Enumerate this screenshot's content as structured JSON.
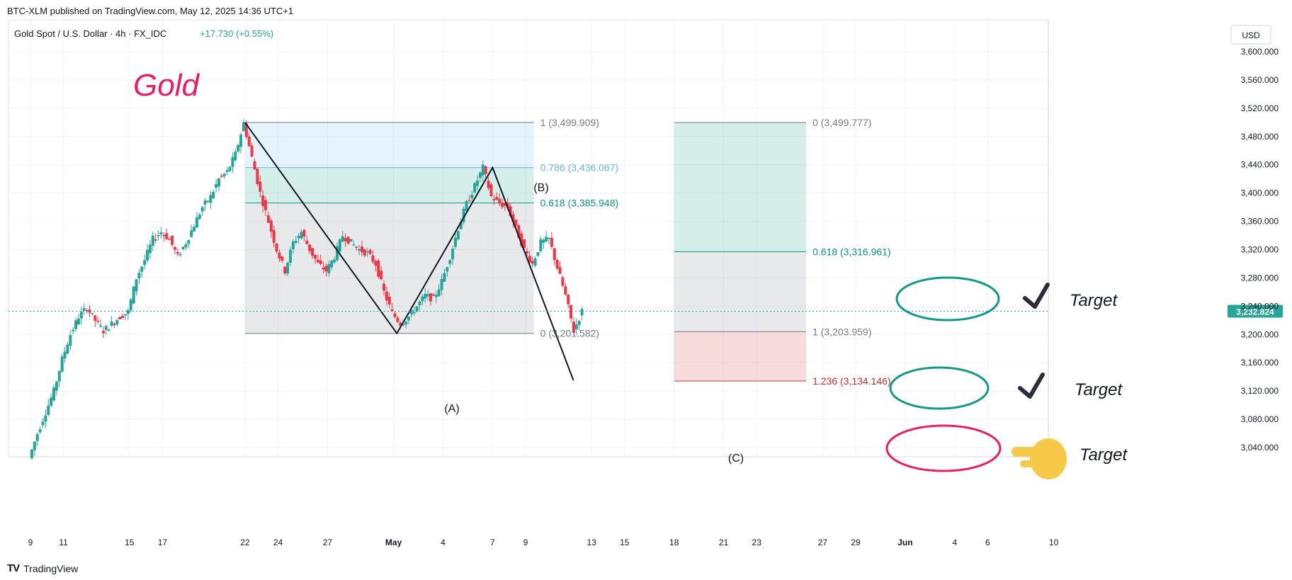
{
  "header": {
    "published": "BTC-XLM published on TradingView.com, May 12, 2025 14:36 UTC+1",
    "symbol": "Gold Spot / U.S. Dollar · 4h · FX_IDC",
    "change": "+17.730 (+0.55%)",
    "currency": "USD"
  },
  "annotations": {
    "title": "Gold",
    "target_label": "Target",
    "wave_a": "(A)",
    "wave_b": "(B)",
    "wave_c": "(C)"
  },
  "footer": {
    "brand": "TradingView",
    "brand_mark": "TV"
  },
  "colors": {
    "up": "#26a69a",
    "down": "#f23645",
    "annotation": "#e91e63",
    "fib_green": "#089981",
    "fib_blue": "#64b5f6",
    "fib_gray": "#787b86",
    "fib_red": "#d32f2f",
    "target_circle_green": "#129b82",
    "pointing_hand": "#f7c948"
  },
  "chart_data": {
    "type": "candlestick",
    "timeframe": "4h",
    "last_price": "3,232.824",
    "y_axis": {
      "ylim": [
        3020,
        3620
      ],
      "ticks": [
        "3,040.000",
        "3,080.000",
        "3,120.000",
        "3,160.000",
        "3,200.000",
        "3,240.000",
        "3,280.000",
        "3,320.000",
        "3,360.000",
        "3,400.000",
        "3,440.000",
        "3,480.000",
        "3,520.000",
        "3,560.000",
        "3,600.000"
      ]
    },
    "x_axis": {
      "ticks": [
        {
          "label": "9",
          "day": 0
        },
        {
          "label": "11",
          "day": 2
        },
        {
          "label": "15",
          "day": 6
        },
        {
          "label": "17",
          "day": 8
        },
        {
          "label": "22",
          "day": 13
        },
        {
          "label": "24",
          "day": 15
        },
        {
          "label": "27",
          "day": 18
        },
        {
          "label": "May",
          "day": 22,
          "bold": true
        },
        {
          "label": "4",
          "day": 25
        },
        {
          "label": "7",
          "day": 28
        },
        {
          "label": "9",
          "day": 30
        },
        {
          "label": "13",
          "day": 34
        },
        {
          "label": "15",
          "day": 36
        },
        {
          "label": "18",
          "day": 39
        },
        {
          "label": "21",
          "day": 42
        },
        {
          "label": "23",
          "day": 44
        },
        {
          "label": "27",
          "day": 48
        },
        {
          "label": "29",
          "day": 50
        },
        {
          "label": "Jun",
          "day": 53,
          "bold": true
        },
        {
          "label": "4",
          "day": 56
        },
        {
          "label": "6",
          "day": 58
        },
        {
          "label": "10",
          "day": 62
        }
      ]
    },
    "price_points": [
      [
        0,
        3025
      ],
      [
        0.5,
        3060
      ],
      [
        1,
        3090
      ],
      [
        1.5,
        3120
      ],
      [
        2,
        3165
      ],
      [
        2.5,
        3200
      ],
      [
        3,
        3225
      ],
      [
        3.5,
        3238
      ],
      [
        4,
        3220
      ],
      [
        4.5,
        3205
      ],
      [
        5,
        3215
      ],
      [
        5.5,
        3225
      ],
      [
        6,
        3232
      ],
      [
        6.5,
        3280
      ],
      [
        7,
        3305
      ],
      [
        7.5,
        3335
      ],
      [
        8,
        3345
      ],
      [
        8.5,
        3335
      ],
      [
        9,
        3310
      ],
      [
        9.5,
        3330
      ],
      [
        10,
        3355
      ],
      [
        10.5,
        3380
      ],
      [
        11,
        3395
      ],
      [
        11.5,
        3420
      ],
      [
        12,
        3430
      ],
      [
        12.5,
        3455
      ],
      [
        13,
        3499
      ],
      [
        13.5,
        3450
      ],
      [
        14,
        3400
      ],
      [
        14.5,
        3360
      ],
      [
        15,
        3320
      ],
      [
        15.5,
        3290
      ],
      [
        16,
        3330
      ],
      [
        16.5,
        3345
      ],
      [
        17,
        3320
      ],
      [
        17.5,
        3300
      ],
      [
        18,
        3290
      ],
      [
        18.5,
        3310
      ],
      [
        19,
        3340
      ],
      [
        19.5,
        3330
      ],
      [
        20,
        3320
      ],
      [
        20.5,
        3315
      ],
      [
        21,
        3300
      ],
      [
        21.5,
        3260
      ],
      [
        22,
        3230
      ],
      [
        22.5,
        3215
      ],
      [
        23,
        3225
      ],
      [
        23.5,
        3240
      ],
      [
        24,
        3255
      ],
      [
        24.5,
        3250
      ],
      [
        25,
        3275
      ],
      [
        25.5,
        3310
      ],
      [
        26,
        3350
      ],
      [
        26.5,
        3385
      ],
      [
        27,
        3410
      ],
      [
        27.5,
        3436
      ],
      [
        28,
        3395
      ],
      [
        28.5,
        3385
      ],
      [
        29,
        3380
      ],
      [
        29.5,
        3350
      ],
      [
        30,
        3320
      ],
      [
        30.5,
        3300
      ],
      [
        31,
        3330
      ],
      [
        31.5,
        3335
      ],
      [
        32,
        3295
      ],
      [
        32.5,
        3255
      ],
      [
        33,
        3205
      ],
      [
        33.5,
        3232.8
      ]
    ],
    "wave_path": [
      [
        13,
        3499.9
      ],
      [
        22.2,
        3201.6
      ],
      [
        28,
        3436.1
      ],
      [
        32.9,
        3135
      ]
    ],
    "fib_retracement": {
      "x_range": [
        13,
        30.5
      ],
      "levels": [
        {
          "ratio": "1",
          "price": 3499.909,
          "label": "1 (3,499.909)",
          "fill": "#787b86"
        },
        {
          "ratio": "0.786",
          "price": 3436.067,
          "label": "0.786 (3,436.067)",
          "fill": "#64b5f6"
        },
        {
          "ratio": "0.618",
          "price": 3385.948,
          "label": "0.618 (3,385.948)",
          "fill": "#089981"
        },
        {
          "ratio": "0",
          "price": 3201.582,
          "label": "0 (3,201.582)",
          "fill": "#787b86"
        }
      ]
    },
    "fib_extension": {
      "x_range": [
        39,
        47
      ],
      "levels": [
        {
          "ratio": "0",
          "price": 3499.777,
          "label": "0 (3,499.777)",
          "fill": "#787b86"
        },
        {
          "ratio": "0.618",
          "price": 3316.961,
          "label": "0.618 (3,316.961)",
          "fill": "#089981"
        },
        {
          "ratio": "1",
          "price": 3203.959,
          "label": "1 (3,203.959)",
          "fill": "#787b86"
        },
        {
          "ratio": "1.236",
          "price": 3134.146,
          "label": "1.236 (3,134.146)",
          "fill": "#d32f2f"
        }
      ]
    }
  }
}
